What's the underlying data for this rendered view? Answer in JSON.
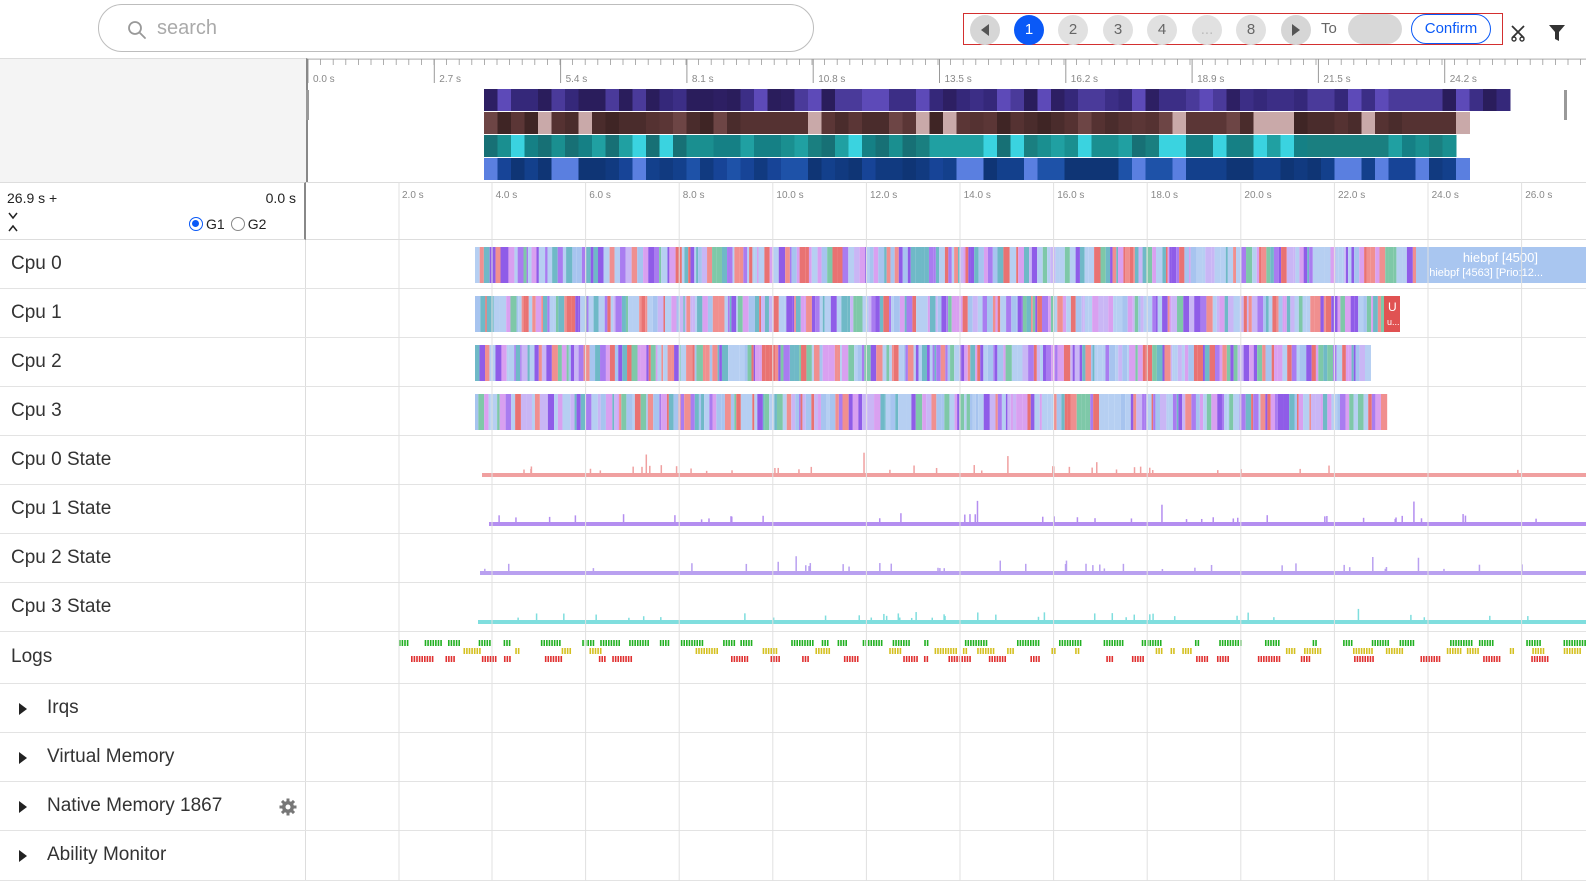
{
  "search": {
    "placeholder": "search",
    "value": ""
  },
  "pager": {
    "pages": [
      "1",
      "2",
      "3",
      "4",
      "...",
      "8"
    ],
    "active_page": "1",
    "to_label": "To",
    "confirm_label": "Confirm"
  },
  "overview": {
    "ticks": [
      "0.0 s",
      "2.7 s",
      "5.4 s",
      "8.1 s",
      "10.8 s",
      "13.5 s",
      "16.2 s",
      "18.9 s",
      "21.5 s",
      "24.2 s"
    ]
  },
  "range": {
    "total": "26.9 s +",
    "start": "0.0 s",
    "groups": [
      "G1",
      "G2"
    ],
    "selected_group": "G1",
    "ticks": [
      "2.0 s",
      "4.0 s",
      "6.0 s",
      "8.0 s",
      "10.0 s",
      "12.0 s",
      "14.0 s",
      "16.0 s",
      "18.0 s",
      "20.0 s",
      "22.0 s",
      "24.0 s",
      "26.0 s"
    ]
  },
  "rows": [
    {
      "label": "Cpu 0",
      "type": "cpu"
    },
    {
      "label": "Cpu 1",
      "type": "cpu"
    },
    {
      "label": "Cpu 2",
      "type": "cpu"
    },
    {
      "label": "Cpu 3",
      "type": "cpu"
    },
    {
      "label": "Cpu 0 State",
      "type": "state"
    },
    {
      "label": "Cpu 1 State",
      "type": "state"
    },
    {
      "label": "Cpu 2 State",
      "type": "state"
    },
    {
      "label": "Cpu 3 State",
      "type": "state"
    },
    {
      "label": "Logs",
      "type": "logs"
    },
    {
      "label": "Irqs",
      "type": "folder"
    },
    {
      "label": "Virtual Memory",
      "type": "folder"
    },
    {
      "label": "Native Memory 1867",
      "type": "folder",
      "gear": true
    },
    {
      "label": "Ability Monitor",
      "type": "folder"
    }
  ],
  "cpu0_tooltip": {
    "title": "hiebpf [4500]",
    "subtitle": "hiebpf [4563] [Prio:12..."
  },
  "cpu1_tag": {
    "letter": "U",
    "sub": "u..."
  },
  "colors": {
    "accent": "#0a59f7",
    "pager_border": "#d32f2f",
    "state0": "#f0a0a0",
    "state1": "#b48ef0",
    "state2": "#b9a0f0",
    "state3": "#7fdede"
  }
}
